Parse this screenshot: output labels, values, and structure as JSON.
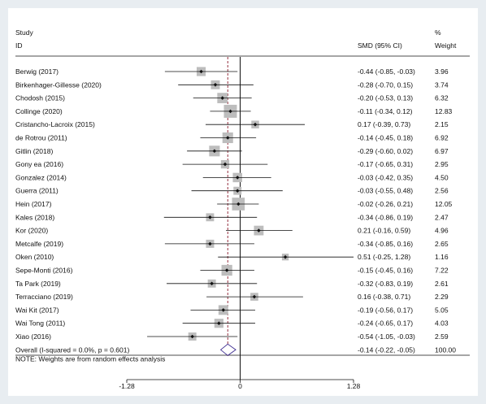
{
  "chart_data": {
    "type": "forest",
    "headers": {
      "study_line1": "Study",
      "study_line2": "ID",
      "effect": "SMD (95% CI)",
      "weight_line1": "%",
      "weight_line2": "Weight"
    },
    "studies": [
      {
        "label": "Berwig (2017)",
        "smd": -0.44,
        "lo": -0.85,
        "hi": -0.03,
        "ci_text": "-0.44 (-0.85, -0.03)",
        "weight": 3.96,
        "weight_text": "3.96"
      },
      {
        "label": "Birkenhager-Gillesse (2020)",
        "smd": -0.28,
        "lo": -0.7,
        "hi": 0.15,
        "ci_text": "-0.28 (-0.70, 0.15)",
        "weight": 3.74,
        "weight_text": "3.74"
      },
      {
        "label": "Chodosh (2015)",
        "smd": -0.2,
        "lo": -0.53,
        "hi": 0.13,
        "ci_text": "-0.20 (-0.53, 0.13)",
        "weight": 6.32,
        "weight_text": "6.32"
      },
      {
        "label": "Collinge (2020)",
        "smd": -0.11,
        "lo": -0.34,
        "hi": 0.12,
        "ci_text": "-0.11 (-0.34, 0.12)",
        "weight": 12.83,
        "weight_text": "12.83"
      },
      {
        "label": "Cristancho-Lacroix (2015)",
        "smd": 0.17,
        "lo": -0.39,
        "hi": 0.73,
        "ci_text": "0.17 (-0.39, 0.73)",
        "weight": 2.15,
        "weight_text": "2.15"
      },
      {
        "label": "de Rotrou (2011)",
        "smd": -0.14,
        "lo": -0.45,
        "hi": 0.18,
        "ci_text": "-0.14 (-0.45, 0.18)",
        "weight": 6.92,
        "weight_text": "6.92"
      },
      {
        "label": "Gitlin (2018)",
        "smd": -0.29,
        "lo": -0.6,
        "hi": 0.02,
        "ci_text": "-0.29 (-0.60, 0.02)",
        "weight": 6.97,
        "weight_text": "6.97"
      },
      {
        "label": "Gony ea (2016)",
        "smd": -0.17,
        "lo": -0.65,
        "hi": 0.31,
        "ci_text": "-0.17 (-0.65, 0.31)",
        "weight": 2.95,
        "weight_text": "2.95"
      },
      {
        "label": "Gonzalez (2014)",
        "smd": -0.03,
        "lo": -0.42,
        "hi": 0.35,
        "ci_text": "-0.03 (-0.42, 0.35)",
        "weight": 4.5,
        "weight_text": "4.50"
      },
      {
        "label": "Guerra (2011)",
        "smd": -0.03,
        "lo": -0.55,
        "hi": 0.48,
        "ci_text": "-0.03 (-0.55, 0.48)",
        "weight": 2.56,
        "weight_text": "2.56"
      },
      {
        "label": "Hein (2017)",
        "smd": -0.02,
        "lo": -0.26,
        "hi": 0.21,
        "ci_text": "-0.02 (-0.26, 0.21)",
        "weight": 12.05,
        "weight_text": "12.05"
      },
      {
        "label": "Kales (2018)",
        "smd": -0.34,
        "lo": -0.86,
        "hi": 0.19,
        "ci_text": "-0.34 (-0.86, 0.19)",
        "weight": 2.47,
        "weight_text": "2.47"
      },
      {
        "label": "Kor (2020)",
        "smd": 0.21,
        "lo": -0.16,
        "hi": 0.59,
        "ci_text": "0.21 (-0.16, 0.59)",
        "weight": 4.96,
        "weight_text": "4.96"
      },
      {
        "label": "Metcalfe (2019)",
        "smd": -0.34,
        "lo": -0.85,
        "hi": 0.16,
        "ci_text": "-0.34 (-0.85, 0.16)",
        "weight": 2.65,
        "weight_text": "2.65"
      },
      {
        "label": "Oken (2010)",
        "smd": 0.51,
        "lo": -0.25,
        "hi": 1.28,
        "ci_text": "0.51 (-0.25, 1.28)",
        "weight": 1.16,
        "weight_text": "1.16"
      },
      {
        "label": "Sepe-Monti (2016)",
        "smd": -0.15,
        "lo": -0.45,
        "hi": 0.16,
        "ci_text": "-0.15 (-0.45, 0.16)",
        "weight": 7.22,
        "weight_text": "7.22"
      },
      {
        "label": "Ta Park (2019)",
        "smd": -0.32,
        "lo": -0.83,
        "hi": 0.19,
        "ci_text": "-0.32 (-0.83, 0.19)",
        "weight": 2.61,
        "weight_text": "2.61"
      },
      {
        "label": "Terracciano (2019)",
        "smd": 0.16,
        "lo": -0.38,
        "hi": 0.71,
        "ci_text": "0.16 (-0.38, 0.71)",
        "weight": 2.29,
        "weight_text": "2.29"
      },
      {
        "label": "Wai Kit (2017)",
        "smd": -0.19,
        "lo": -0.56,
        "hi": 0.17,
        "ci_text": "-0.19 (-0.56, 0.17)",
        "weight": 5.05,
        "weight_text": "5.05"
      },
      {
        "label": "Wai Tong (2011)",
        "smd": -0.24,
        "lo": -0.65,
        "hi": 0.17,
        "ci_text": "-0.24 (-0.65, 0.17)",
        "weight": 4.03,
        "weight_text": "4.03"
      },
      {
        "label": "Xiao (2016)",
        "smd": -0.54,
        "lo": -1.05,
        "hi": -0.03,
        "ci_text": "-0.54 (-1.05, -0.03)",
        "weight": 2.59,
        "weight_text": "2.59"
      }
    ],
    "overall": {
      "label": "Overall  (I-squared = 0.0%, p = 0.601)",
      "smd": -0.14,
      "lo": -0.22,
      "hi": -0.05,
      "ci_text": "-0.14 (-0.22, -0.05)",
      "weight_text": "100.00"
    },
    "note": "NOTE: Weights are from random effects analysis",
    "x_ticks": [
      {
        "value": -1.28,
        "label": "-1.28"
      },
      {
        "value": 0,
        "label": "0"
      },
      {
        "value": 1.28,
        "label": "1.28"
      }
    ],
    "xlim": [
      -1.28,
      1.28
    ],
    "null_line": 0,
    "colors": {
      "background": "#e8edf1",
      "panel": "#ffffff",
      "marker_box": "#bdbdbd",
      "point": "#111111",
      "ci_line": "#111111",
      "overall_line": "#8b1a2b",
      "diamond": "#3b2a8f"
    }
  }
}
